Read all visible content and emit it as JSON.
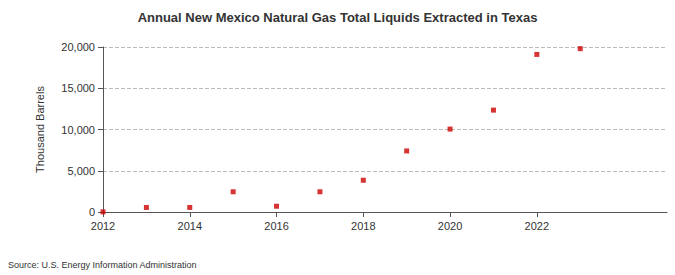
{
  "chart_data": {
    "type": "scatter",
    "title": "Annual New Mexico Natural Gas Total Liquids Extracted in Texas",
    "y_label": "Thousand Barrels",
    "annotations": [
      "Source: U.S. Energy Information Administration"
    ],
    "x": [
      2012,
      2013,
      2014,
      2015,
      2016,
      2017,
      2018,
      2019,
      2020,
      2021,
      2022,
      2023
    ],
    "values": [
      20,
      550,
      550,
      2450,
      700,
      2450,
      3850,
      7400,
      10050,
      12350,
      19100,
      19800
    ],
    "color": "#cc0000",
    "marker": "square",
    "xlim": [
      2012,
      2025
    ],
    "xticks": [
      2012,
      2014,
      2016,
      2018,
      2020,
      2022
    ],
    "ylim": [
      0,
      20000
    ],
    "yticks": [
      0,
      {
        "value": 5000,
        "label": "5,000"
      },
      {
        "value": 10000,
        "label": "10,000"
      },
      {
        "value": 15000,
        "label": "15,000"
      },
      {
        "value": 20000,
        "label": "20,000"
      }
    ],
    "grid": true
  }
}
